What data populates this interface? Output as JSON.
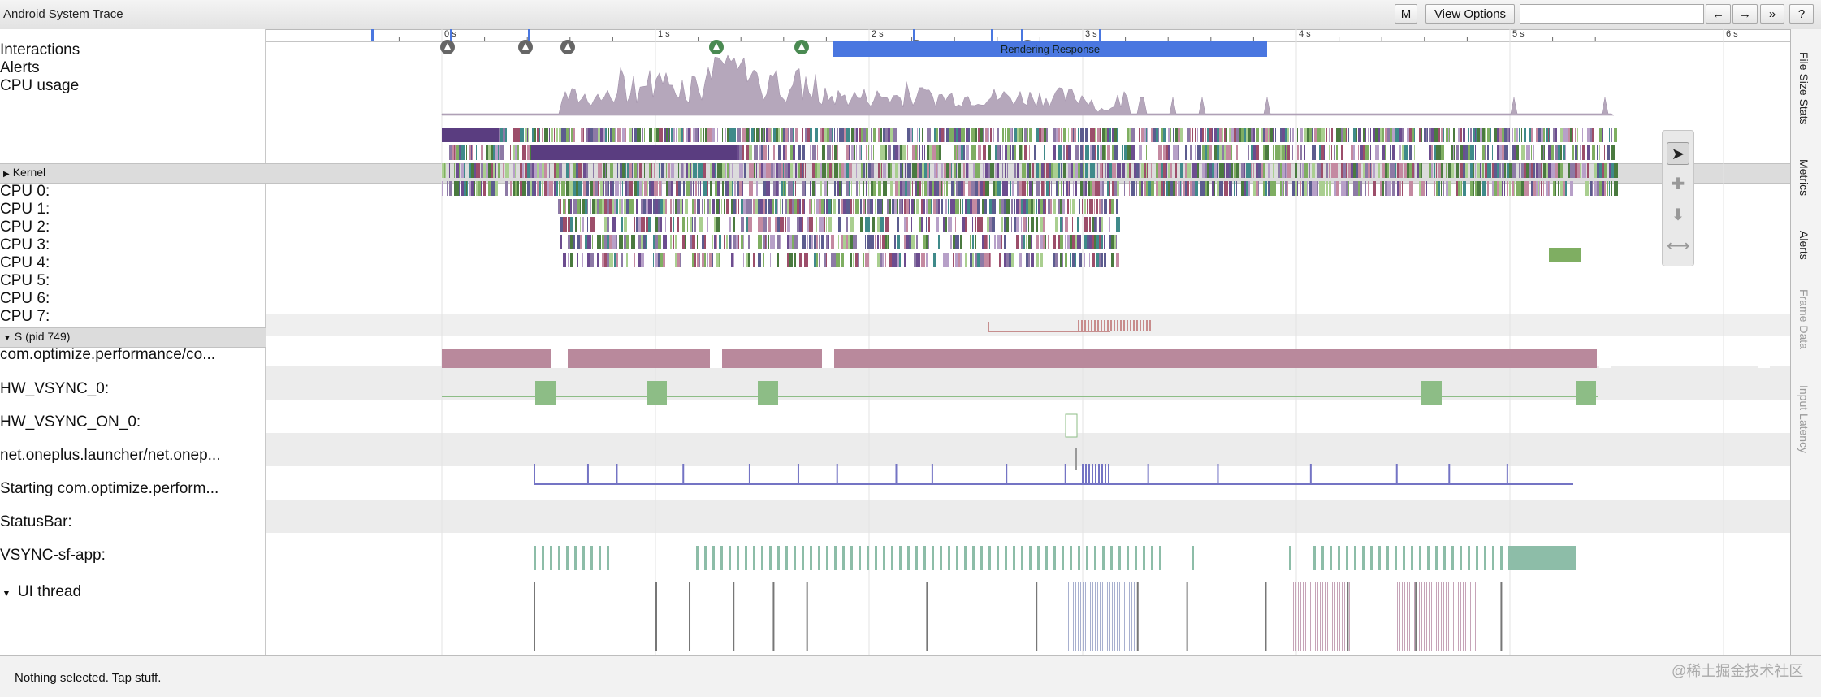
{
  "app": {
    "title": "Android System Trace"
  },
  "toolbar": {
    "m_label": "M",
    "view_options_label": "View Options",
    "back_label": "←",
    "forward_label": "→",
    "more_label": "»",
    "help_label": "?",
    "search_value": ""
  },
  "ruler": {
    "ticks": [
      "0 s",
      "1 s",
      "2 s",
      "3 s",
      "4 s",
      "5 s",
      "6 s"
    ]
  },
  "tracks": {
    "interactions_label": "Interactions",
    "alerts_label": "Alerts",
    "cpu_usage_label": "CPU usage",
    "rendering_response_label": "Rendering Response"
  },
  "kernel": {
    "header": "Kernel",
    "cpus": [
      "CPU 0:",
      "CPU 1:",
      "CPU 2:",
      "CPU 3:",
      "CPU 4:",
      "CPU 5:",
      "CPU 6:",
      "CPU 7:"
    ]
  },
  "process": {
    "header": "S (pid 749)",
    "rows": [
      "com.optimize.performance/co...",
      "HW_VSYNC_0:",
      "HW_VSYNC_ON_0:",
      "net.oneplus.launcher/net.onep...",
      "Starting com.optimize.perform...",
      "StatusBar:",
      "VSYNC-sf-app:",
      "UI thread"
    ]
  },
  "sidebar": {
    "tabs": [
      "File Size Stats",
      "Metrics",
      "Alerts",
      "Frame Data",
      "Input Latency"
    ]
  },
  "tools": [
    "select-icon",
    "pan-icon",
    "zoom-icon",
    "timing-icon"
  ],
  "status": {
    "text": "Nothing selected. Tap stuff."
  },
  "watermark": "@稀土掘金技术社区",
  "colors": {
    "rendering_response": "#4a77e0",
    "vsync_pink": "#b9899c",
    "vsync_green": "#8dbd86",
    "cpu_usage_fill": "#b5a7bb"
  }
}
